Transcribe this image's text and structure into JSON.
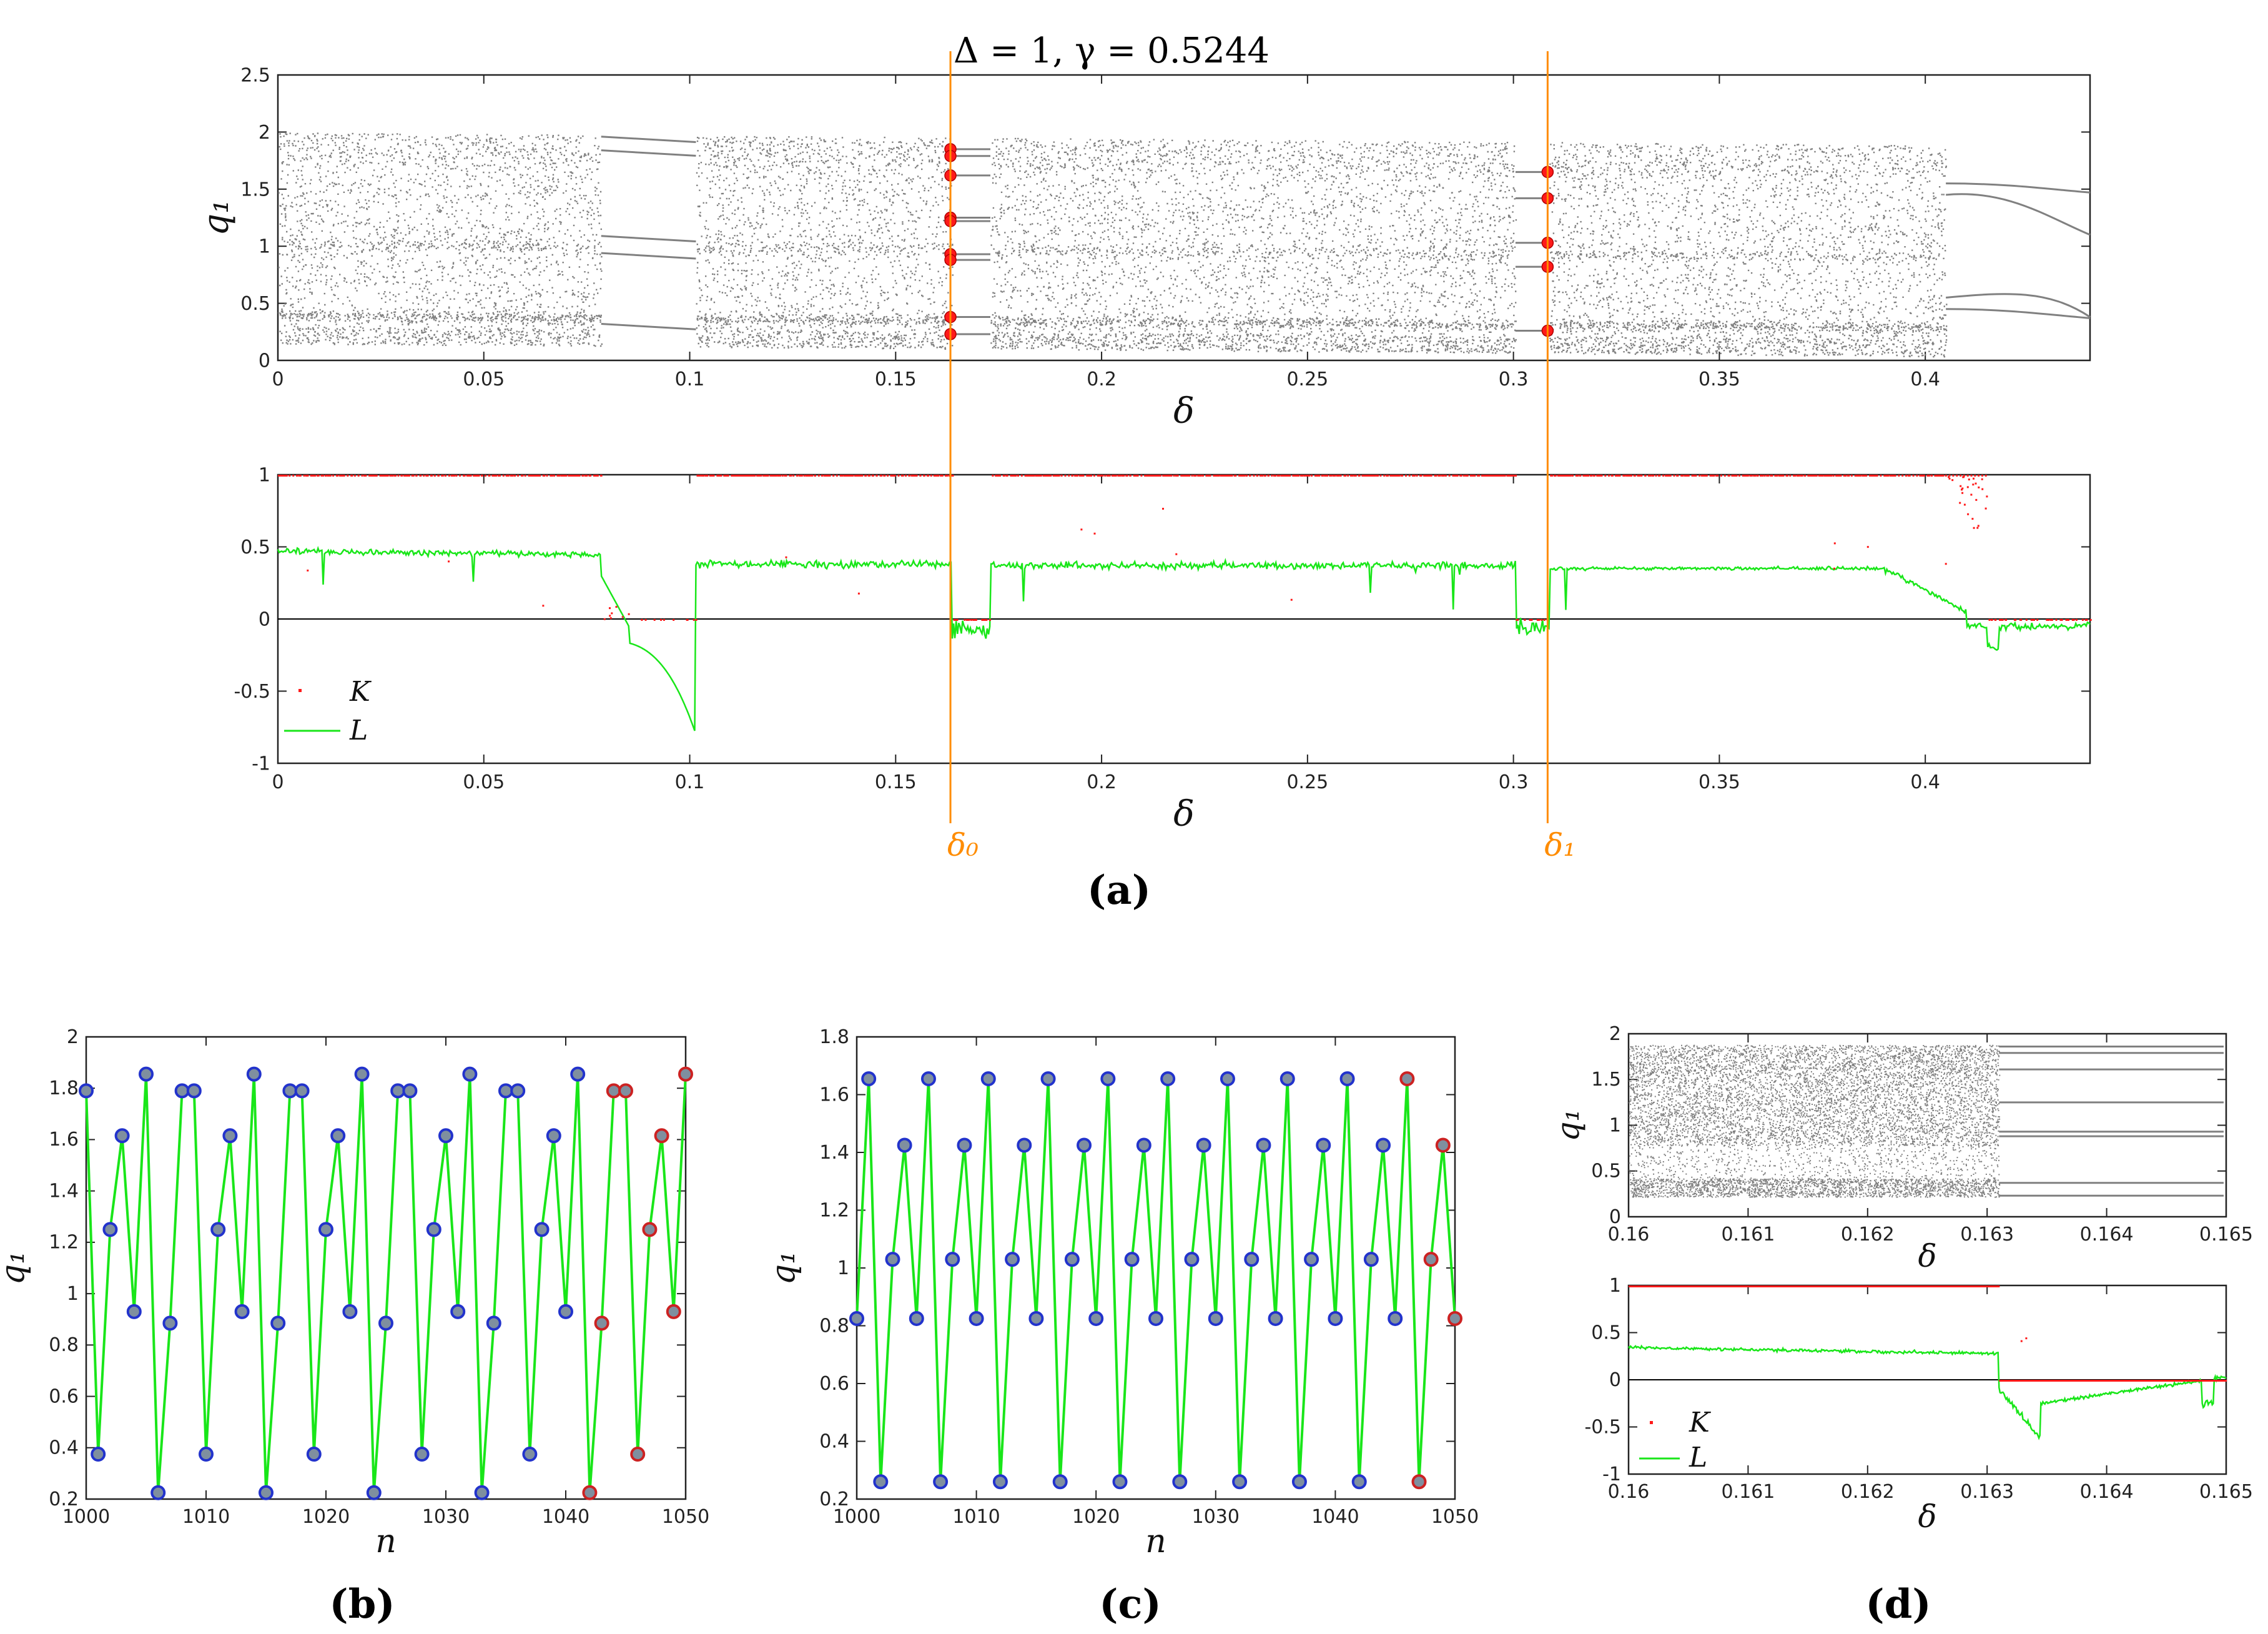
{
  "figure": {
    "title": "Δ = 1,  γ = 0.5244",
    "panel_labels": [
      "(a)",
      "(b)",
      "(c)",
      "(d)"
    ],
    "markers": {
      "d0": "δ₀",
      "d1": "δ₁",
      "d0_value": 0.1633,
      "d1_value": 0.3083
    },
    "colors": {
      "orbit": "#808080",
      "K": "#ff1a1a",
      "L": "#19e619",
      "marker": "#ff8c00",
      "blue_point": "#2233cc",
      "red_point": "#cc2222",
      "fill_point": "#7f8f9f"
    }
  },
  "chart_data": [
    {
      "id": "a-top",
      "type": "scatter",
      "title": "Δ = 1,  γ = 0.5244",
      "xlabel": "δ",
      "ylabel": "q₁",
      "xlim": [
        0,
        0.44
      ],
      "ylim": [
        0,
        2.5
      ],
      "xticks": [
        "0",
        "0.05",
        "0.1",
        "0.15",
        "0.2",
        "0.25",
        "0.3",
        "0.35",
        "0.4"
      ],
      "yticks": [
        "0",
        "0.5",
        "1",
        "1.5",
        "2",
        "2.5"
      ],
      "series": [
        {
          "name": "bifurcation diagram",
          "description": "chaotic band q1≈0.2–2.0 across δ with periodic windows near δ≈0.08–0.10, δ≈0.163–0.172, δ≈0.30–0.31; period-doubling cascade for δ>0.40"
        },
        {
          "name": "orbit at δ0 (red)",
          "x": 0.1633,
          "values": [
            1.85,
            1.79,
            1.62,
            1.25,
            1.22,
            0.93,
            0.88,
            0.38,
            0.23
          ]
        },
        {
          "name": "orbit at δ1 (red)",
          "x": 0.3083,
          "values": [
            1.65,
            1.42,
            1.03,
            0.82,
            0.26
          ]
        }
      ]
    },
    {
      "id": "a-bottom",
      "type": "line",
      "xlabel": "δ",
      "ylabel": "",
      "xlim": [
        0,
        0.44
      ],
      "ylim": [
        -1,
        1
      ],
      "xticks": [
        "0",
        "0.05",
        "0.1",
        "0.15",
        "0.2",
        "0.25",
        "0.3",
        "0.35",
        "0.4"
      ],
      "yticks": [
        "-1",
        "-0.5",
        "0",
        "0.5",
        "1"
      ],
      "legend": {
        "position": "bottom-left",
        "entries": [
          "K",
          "L"
        ]
      },
      "series": [
        {
          "name": "K",
          "description": "≈1 in chaotic intervals, ≈0 in periodic windows and for δ>0.41"
        },
        {
          "name": "L",
          "description": "Lyapunov exponent ≈0.35–0.47, negative in windows; minimum ≈-0.84 at δ≈0.1"
        }
      ]
    },
    {
      "id": "b",
      "type": "line",
      "xlabel": "n",
      "ylabel": "q₁",
      "xlim": [
        1000,
        1050
      ],
      "ylim": [
        0.2,
        2
      ],
      "xticks": [
        "1000",
        "1010",
        "1020",
        "1030",
        "1040",
        "1050"
      ],
      "yticks": [
        "0.2",
        "0.4",
        "0.6",
        "0.8",
        "1",
        "1.2",
        "1.4",
        "1.6",
        "1.8",
        "2"
      ],
      "period": 9,
      "cycle": [
        1.79,
        0.375,
        1.25,
        1.615,
        0.93,
        1.855,
        0.225,
        0.885,
        1.79
      ],
      "red_from": 1042
    },
    {
      "id": "c",
      "type": "line",
      "xlabel": "n",
      "ylabel": "q₁",
      "xlim": [
        1000,
        1050
      ],
      "ylim": [
        0.2,
        1.8
      ],
      "xticks": [
        "1000",
        "1010",
        "1020",
        "1030",
        "1040",
        "1050"
      ],
      "yticks": [
        "0.2",
        "0.4",
        "0.6",
        "0.8",
        "1",
        "1.2",
        "1.4",
        "1.6",
        "1.8"
      ],
      "period": 5,
      "cycle": [
        0.825,
        1.655,
        0.26,
        1.03,
        1.425
      ],
      "red_from": 1046
    },
    {
      "id": "d-top",
      "type": "scatter",
      "xlabel": "δ",
      "ylabel": "q₁",
      "xlim": [
        0.16,
        0.165
      ],
      "ylim": [
        0,
        2
      ],
      "xticks": [
        "0.16",
        "0.161",
        "0.162",
        "0.163",
        "0.164",
        "0.165"
      ],
      "yticks": [
        "0",
        "0.5",
        "1",
        "1.5",
        "2"
      ],
      "transition": 0.1631,
      "periodic_levels": [
        1.86,
        1.79,
        1.61,
        1.25,
        0.93,
        0.88,
        0.37,
        0.23
      ]
    },
    {
      "id": "d-bottom",
      "type": "line",
      "xlabel": "δ",
      "ylabel": "",
      "xlim": [
        0.16,
        0.165
      ],
      "ylim": [
        -1,
        1
      ],
      "xticks": [
        "0.16",
        "0.161",
        "0.162",
        "0.163",
        "0.164",
        "0.165"
      ],
      "yticks": [
        "-1",
        "-0.5",
        "0",
        "0.5",
        "1"
      ],
      "legend": {
        "position": "bottom-left",
        "entries": [
          "K",
          "L"
        ]
      }
    }
  ]
}
